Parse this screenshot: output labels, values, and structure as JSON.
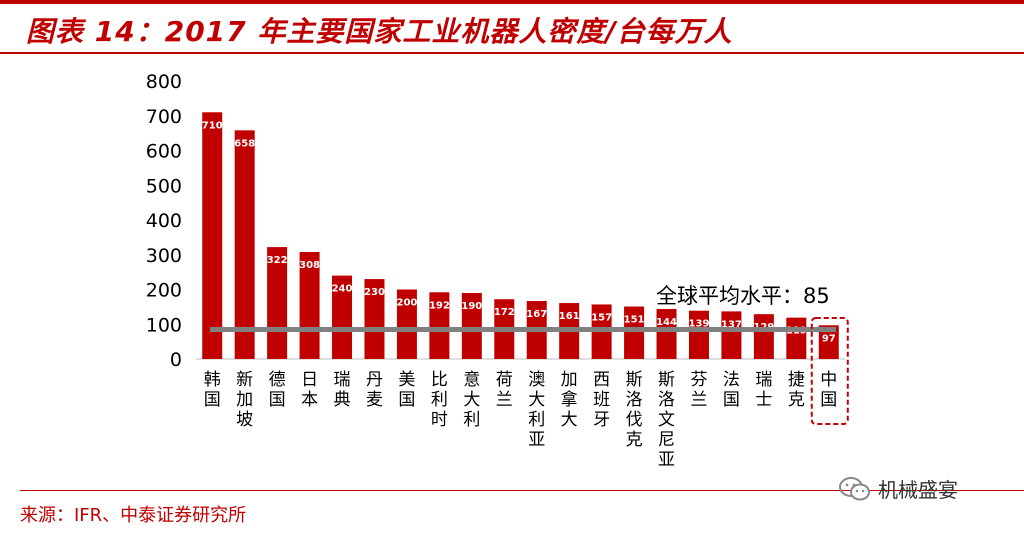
{
  "figure": {
    "title": "图表 14：2017 年主要国家工业机器人密度/台每万人",
    "source": "来源：IFR、中泰证券研究所",
    "watermark": "机械盛宴",
    "watermark_icon": "wechat-icon"
  },
  "colors": {
    "accent": "#c00000",
    "bar": "#c00000",
    "avg_line": "#808080",
    "highlight_box": "#c00000"
  },
  "chart_data": {
    "type": "bar",
    "categories": [
      "韩国",
      "新加坡",
      "德国",
      "日本",
      "瑞典",
      "丹麦",
      "美国",
      "比利时",
      "意大利",
      "荷兰",
      "澳大利亚",
      "加拿大",
      "西班牙",
      "斯洛伐克",
      "斯洛文尼亚",
      "芬兰",
      "法国",
      "瑞士",
      "捷克",
      "中国"
    ],
    "values": [
      710,
      658,
      322,
      308,
      240,
      230,
      200,
      192,
      190,
      172,
      167,
      161,
      157,
      151,
      144,
      139,
      137,
      129,
      119,
      97
    ],
    "ylim": [
      0,
      800
    ],
    "yticks": [
      0,
      100,
      200,
      300,
      400,
      500,
      600,
      700,
      800
    ],
    "grid": false,
    "reference_line": {
      "label": "全球平均水平：85",
      "value": 85
    },
    "highlight": "中国"
  }
}
